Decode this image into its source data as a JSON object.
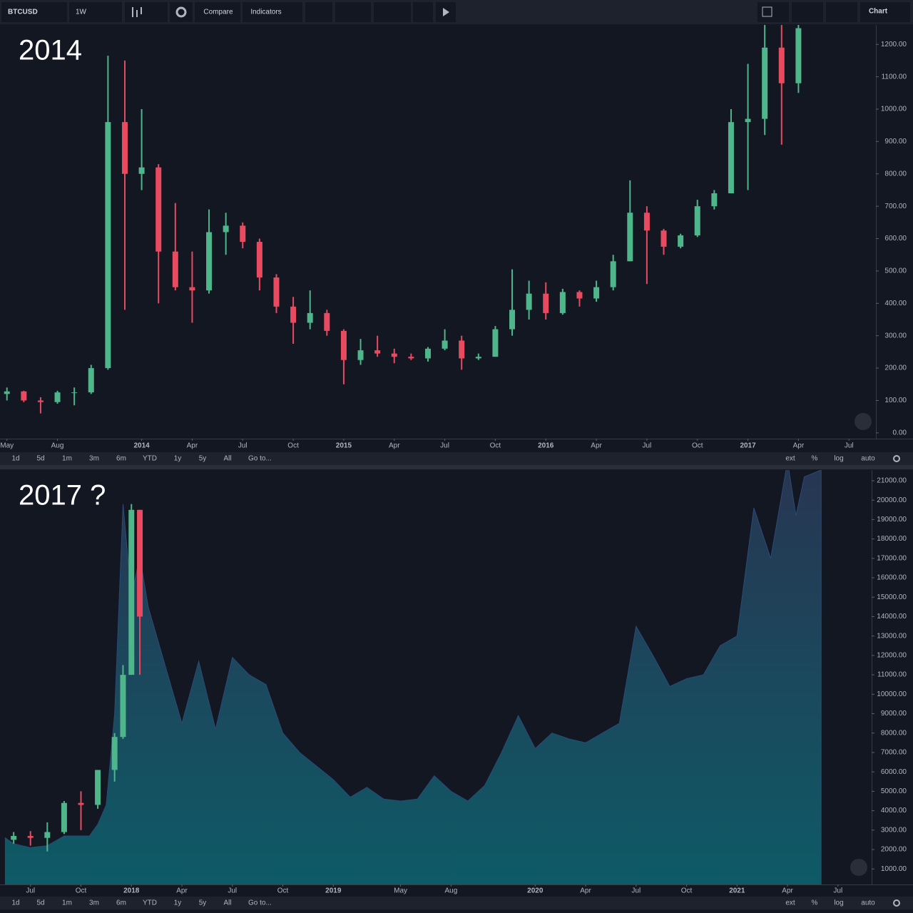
{
  "toolbar": {
    "symbol": "BTCUSD",
    "interval": "1W",
    "compare": "Compare",
    "indicators": "Indicators",
    "layout": "Chart"
  },
  "range_bar": {
    "ranges": [
      "1d",
      "5d",
      "1m",
      "3m",
      "6m",
      "YTD",
      "1y",
      "5y",
      "All"
    ],
    "goto": "Go to...",
    "options": [
      "ext",
      "%",
      "log",
      "auto"
    ]
  },
  "chart_data": [
    {
      "type": "candlestick",
      "annotation": "2014",
      "up_color": "#4fb58a",
      "down_color": "#e84a5f",
      "x": [
        0,
        1,
        2,
        3,
        4,
        5,
        6,
        7,
        8,
        9,
        10,
        11,
        12,
        13,
        14,
        15,
        16,
        17,
        18,
        19,
        20,
        21,
        22,
        23,
        24,
        25,
        26,
        27,
        28,
        29,
        30,
        31,
        32,
        33,
        34,
        35,
        36,
        37,
        38,
        39,
        40,
        41,
        42,
        43,
        44,
        45,
        46,
        47
      ],
      "open": [
        120,
        128,
        100,
        95,
        125,
        125,
        200,
        960,
        800,
        820,
        560,
        450,
        440,
        620,
        640,
        590,
        480,
        390,
        340,
        370,
        315,
        225,
        255,
        245,
        235,
        230,
        260,
        285,
        230,
        235,
        320,
        380,
        430,
        370,
        435,
        415,
        450,
        530,
        680,
        625,
        575,
        610,
        700,
        740,
        960,
        970,
        1190,
        1080
      ],
      "high": [
        140,
        130,
        110,
        130,
        140,
        210,
        1165,
        1150,
        1000,
        830,
        710,
        560,
        690,
        680,
        650,
        600,
        490,
        420,
        440,
        380,
        320,
        290,
        300,
        260,
        245,
        265,
        320,
        300,
        245,
        330,
        505,
        470,
        465,
        445,
        440,
        470,
        550,
        780,
        700,
        630,
        615,
        720,
        750,
        1000,
        1140,
        1260,
        1260,
        1260
      ],
      "low": [
        100,
        95,
        60,
        90,
        85,
        120,
        195,
        380,
        750,
        400,
        440,
        340,
        430,
        550,
        570,
        440,
        370,
        275,
        320,
        300,
        150,
        210,
        235,
        215,
        225,
        220,
        255,
        195,
        225,
        235,
        300,
        350,
        350,
        365,
        390,
        405,
        440,
        530,
        460,
        550,
        570,
        605,
        690,
        740,
        750,
        920,
        890,
        1050
      ],
      "close": [
        128,
        100,
        95,
        125,
        125,
        200,
        960,
        800,
        820,
        560,
        450,
        440,
        620,
        640,
        590,
        480,
        390,
        340,
        370,
        315,
        225,
        255,
        245,
        235,
        230,
        260,
        285,
        230,
        235,
        320,
        380,
        430,
        370,
        435,
        415,
        450,
        530,
        680,
        625,
        575,
        610,
        700,
        740,
        960,
        970,
        1190,
        1080,
        1250
      ],
      "xlim": [
        -0.2,
        51.6
      ],
      "xticks": [
        {
          "value": 0,
          "label": "May"
        },
        {
          "value": 3,
          "label": "Aug"
        },
        {
          "value": 8,
          "label": "2014"
        },
        {
          "value": 11,
          "label": "Apr"
        },
        {
          "value": 14,
          "label": "Jul"
        },
        {
          "value": 17,
          "label": "Oct"
        },
        {
          "value": 20,
          "label": "2015"
        },
        {
          "value": 23,
          "label": "Apr"
        },
        {
          "value": 26,
          "label": "Jul"
        },
        {
          "value": 29,
          "label": "Oct"
        },
        {
          "value": 32,
          "label": "2016"
        },
        {
          "value": 35,
          "label": "Apr"
        },
        {
          "value": 38,
          "label": "Jul"
        },
        {
          "value": 41,
          "label": "Oct"
        },
        {
          "value": 44,
          "label": "2017"
        },
        {
          "value": 47,
          "label": "Apr"
        },
        {
          "value": 50,
          "label": "Jul"
        }
      ],
      "ylim": [
        -18,
        1260
      ],
      "yticks": [
        {
          "value": 0,
          "label": "0.00"
        },
        {
          "value": 100,
          "label": "100.00"
        },
        {
          "value": 200,
          "label": "200.00"
        },
        {
          "value": 300,
          "label": "300.00"
        },
        {
          "value": 400,
          "label": "400.00"
        },
        {
          "value": 500,
          "label": "500.00"
        },
        {
          "value": 600,
          "label": "600.00"
        },
        {
          "value": 700,
          "label": "700.00"
        },
        {
          "value": 800,
          "label": "800.00"
        },
        {
          "value": 900,
          "label": "900.00"
        },
        {
          "value": 1000,
          "label": "1000.00"
        },
        {
          "value": 1100,
          "label": "1100.00"
        },
        {
          "value": 1200,
          "label": "1200.00"
        }
      ],
      "grid": false
    },
    {
      "type": "area",
      "annotation": "2017 ?",
      "color": "#0e5a66",
      "x": [
        -1.5,
        -1,
        0,
        1,
        2,
        3,
        3.5,
        4,
        4.5,
        5,
        5.5,
        6,
        6.5,
        7,
        8,
        9,
        10,
        11,
        12,
        13,
        14,
        15,
        16,
        17,
        18,
        19,
        20,
        21,
        22,
        23,
        24,
        25,
        26,
        27,
        28,
        29,
        30,
        31,
        32,
        33,
        34,
        35,
        36,
        37,
        38,
        39,
        40,
        41,
        42,
        43,
        44,
        45,
        45.5,
        46,
        47
      ],
      "values": [
        2600,
        2300,
        2100,
        2200,
        2700,
        2700,
        2700,
        3300,
        4300,
        9000,
        19800,
        15000,
        17100,
        14500,
        11500,
        8500,
        11700,
        8200,
        11900,
        11000,
        10500,
        8000,
        7000,
        6300,
        5600,
        4700,
        5200,
        4600,
        4500,
        4600,
        5800,
        5000,
        4500,
        5300,
        7000,
        8900,
        7200,
        8000,
        7700,
        7500,
        8000,
        8500,
        13500,
        12000,
        10400,
        10800,
        11000,
        12500,
        13000,
        19600,
        17000,
        22000,
        19200,
        21200,
        21550
      ],
      "overlay": {
        "type": "candlestick",
        "up_color": "#4fb58a",
        "down_color": "#e84a5f",
        "x": [
          -1,
          0,
          1,
          2,
          3,
          4,
          5,
          5.5,
          6,
          6.5
        ],
        "open": [
          2500,
          2700,
          2600,
          2900,
          4400,
          4300,
          6100,
          7800,
          11000,
          19500
        ],
        "high": [
          2900,
          2950,
          3400,
          4500,
          5000,
          6100,
          8000,
          11500,
          19800,
          19500
        ],
        "low": [
          2300,
          2200,
          1900,
          2800,
          3000,
          4100,
          5500,
          7700,
          11000,
          11000
        ],
        "close": [
          2700,
          2600,
          2900,
          4400,
          4300,
          6100,
          7800,
          11000,
          19500,
          14000
        ]
      },
      "xlim": [
        -1.6,
        50
      ],
      "xticks": [
        {
          "value": 0,
          "label": "Jul"
        },
        {
          "value": 3,
          "label": "Oct"
        },
        {
          "value": 6,
          "label": "2018"
        },
        {
          "value": 9,
          "label": "Apr"
        },
        {
          "value": 12,
          "label": "Jul"
        },
        {
          "value": 15,
          "label": "Oct"
        },
        {
          "value": 18,
          "label": "2019"
        },
        {
          "value": 22,
          "label": "May"
        },
        {
          "value": 25,
          "label": "Aug"
        },
        {
          "value": 30,
          "label": "2020"
        },
        {
          "value": 33,
          "label": "Apr"
        },
        {
          "value": 36,
          "label": "Jul"
        },
        {
          "value": 39,
          "label": "Oct"
        },
        {
          "value": 42,
          "label": "2021"
        },
        {
          "value": 45,
          "label": "Apr"
        },
        {
          "value": 48,
          "label": "Jul"
        }
      ],
      "ylim": [
        200,
        21550
      ],
      "yticks": [
        {
          "value": 1000,
          "label": "1000.00"
        },
        {
          "value": 2000,
          "label": "2000.00"
        },
        {
          "value": 3000,
          "label": "3000.00"
        },
        {
          "value": 4000,
          "label": "4000.00"
        },
        {
          "value": 5000,
          "label": "5000.00"
        },
        {
          "value": 6000,
          "label": "6000.00"
        },
        {
          "value": 7000,
          "label": "7000.00"
        },
        {
          "value": 8000,
          "label": "8000.00"
        },
        {
          "value": 9000,
          "label": "9000.00"
        },
        {
          "value": 10000,
          "label": "10000.00"
        },
        {
          "value": 11000,
          "label": "11000.00"
        },
        {
          "value": 12000,
          "label": "12000.00"
        },
        {
          "value": 13000,
          "label": "13000.00"
        },
        {
          "value": 14000,
          "label": "14000.00"
        },
        {
          "value": 15000,
          "label": "15000.00"
        },
        {
          "value": 16000,
          "label": "16000.00"
        },
        {
          "value": 17000,
          "label": "17000.00"
        },
        {
          "value": 18000,
          "label": "18000.00"
        },
        {
          "value": 19000,
          "label": "19000.00"
        },
        {
          "value": 20000,
          "label": "20000.00"
        },
        {
          "value": 21000,
          "label": "21000.00"
        }
      ],
      "grid": false
    }
  ]
}
